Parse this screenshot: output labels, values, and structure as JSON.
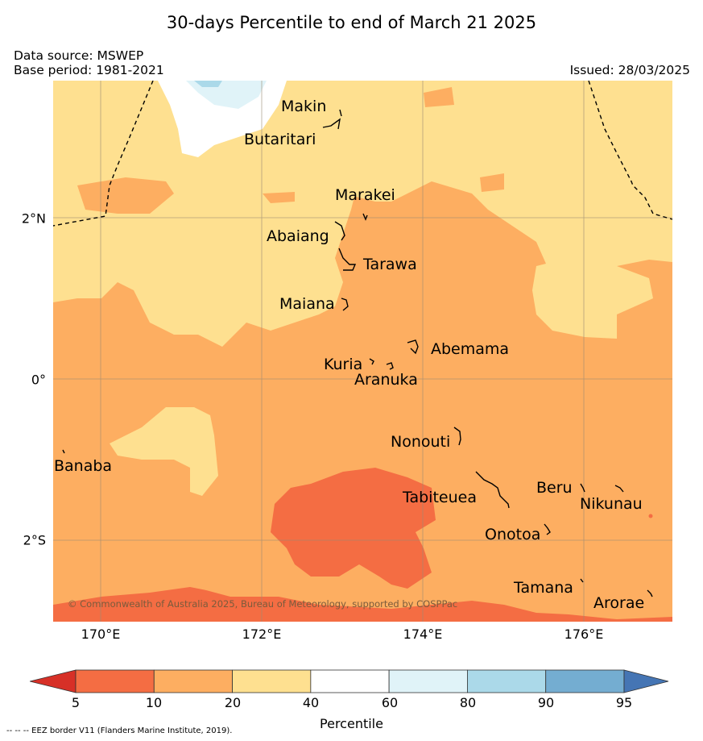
{
  "title": "30-days Percentile to end of March 21 2025",
  "data_source": "Data source: MSWEP",
  "base_period": "Base period: 1981-2021",
  "issued": "Issued: 28/03/2025",
  "copyright": "© Commonwealth of Australia 2025, Bureau of Meteorology, supported by COSPPac",
  "eez_note": "-- -- -- EEZ border V11 (Flanders Marine Institute, 2019).",
  "longitude_ticks": [
    "170°E",
    "172°E",
    "174°E",
    "176°E"
  ],
  "latitude_ticks": [
    "2°N",
    "0°",
    "2°S"
  ],
  "places": [
    "Makin",
    "Butaritari",
    "Marakei",
    "Abaiang",
    "Tarawa",
    "Maiana",
    "Abemama",
    "Kuria",
    "Aranuka",
    "Nonouti",
    "Banaba",
    "Beru",
    "Tabiteuea",
    "Nikunau",
    "Onotoa",
    "Tamana",
    "Arorae"
  ],
  "colorbar": {
    "label": "Percentile",
    "ticks": [
      "5",
      "10",
      "20",
      "40",
      "60",
      "80",
      "90",
      "95"
    ],
    "colors": [
      "#d73027",
      "#f46d43",
      "#fdae61",
      "#fee090",
      "#ffffff",
      "#e0f3f8",
      "#abd9e9",
      "#74add1",
      "#4575b4"
    ]
  },
  "legend_colors": {
    "band_5_10": "#f46d43",
    "band_10_20": "#fdae61",
    "band_20_40": "#fee090",
    "band_40_60": "#ffffff",
    "band_60_80": "#e0f3f8",
    "band_80_90": "#abd9e9"
  }
}
